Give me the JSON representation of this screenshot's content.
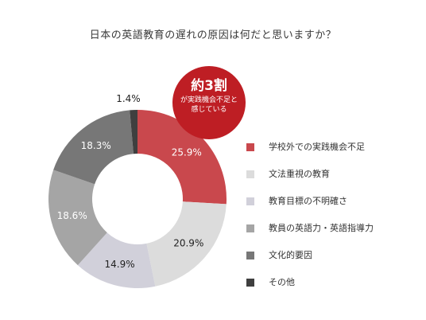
{
  "title": "日本の英語教育の遅れの原因は何だと思いますか？",
  "callout": {
    "main": "約3割",
    "sub": "が実践機会不足と感じている",
    "color": "#be1e24"
  },
  "chart_data": {
    "type": "pie",
    "variant": "donut",
    "title": "日本の英語教育の遅れの原因は何だと思いますか？",
    "unit": "%",
    "legend_position": "right",
    "slices": [
      {
        "label": "学校外での実践機会不足",
        "value": 25.9,
        "display": "25.9%",
        "color": "#c9484d"
      },
      {
        "label": "文法重視の教育",
        "value": 20.9,
        "display": "20.9%",
        "color": "#dcdcdc"
      },
      {
        "label": "教育目標の不明確さ",
        "value": 14.9,
        "display": "14.9%",
        "color": "#d1d0da"
      },
      {
        "label": "教員の英語力・英語指導力",
        "value": 18.6,
        "display": "18.6%",
        "color": "#a5a5a5"
      },
      {
        "label": "文化的要因",
        "value": 18.3,
        "display": "18.3%",
        "color": "#777777"
      },
      {
        "label": "その他",
        "value": 1.4,
        "display": "1.4%",
        "color": "#3f3f3f"
      }
    ]
  }
}
